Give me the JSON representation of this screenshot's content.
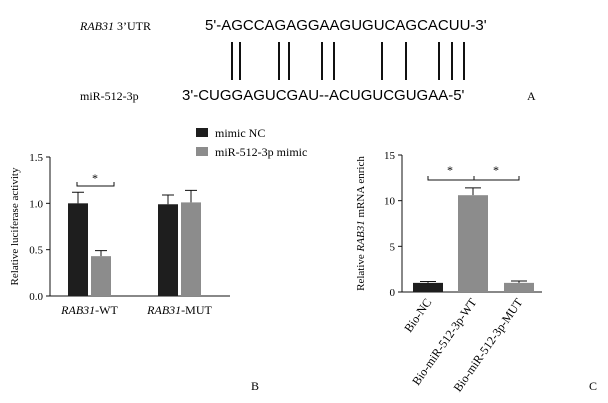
{
  "panel_a": {
    "gene_label": "RAB31",
    "utr_label": " 3’UTR",
    "utr_sequence": "5'-AGCCAGAGGAAGUGUCAGCACUU-3'",
    "mirna_label": "miR-512-3p",
    "mirna_sequence": "3'-CUGGAGUCGAU--ACUGUCGUGAA-5'",
    "panel_letter": "A"
  },
  "panel_b": {
    "panel_letter": "B",
    "significance": "*",
    "category_suffix": "-WT",
    "category_suffix_2": "-MUT"
  },
  "panel_c": {
    "panel_letter": "C",
    "significance_1": "*",
    "significance_2": "*"
  },
  "colors": {
    "mimic_nc": "#1e1e1e",
    "mimic": "#8c8c8c"
  },
  "chart_data": [
    {
      "type": "bar",
      "ylabel": "Relative luciferase activity",
      "ylim": [
        0,
        1.5
      ],
      "yticks": [
        "0.0",
        "0.5",
        "1.0",
        "1.5"
      ],
      "categories": [
        "RAB31-WT",
        "RAB31-MUT"
      ],
      "series": [
        {
          "name": "mimic NC",
          "values": [
            1.0,
            0.99
          ],
          "errors": [
            0.12,
            0.1
          ]
        },
        {
          "name": "miR-512-3p mimic",
          "values": [
            0.43,
            1.01
          ],
          "errors": [
            0.06,
            0.13
          ]
        }
      ],
      "legend": "top-center"
    },
    {
      "type": "bar",
      "ylabel_prefix": "Relative ",
      "ylabel_gene": "RAB31",
      "ylabel_suffix": " mRNA enrich",
      "ylim": [
        0,
        15
      ],
      "yticks": [
        "0",
        "5",
        "10",
        "15"
      ],
      "categories": [
        "Bio-NC",
        "Bio-miR-512-3p-WT",
        "Bio-miR-512-3p-MUT"
      ],
      "values": [
        1.0,
        10.6,
        1.0
      ],
      "errors": [
        0.15,
        0.8,
        0.2
      ]
    }
  ]
}
